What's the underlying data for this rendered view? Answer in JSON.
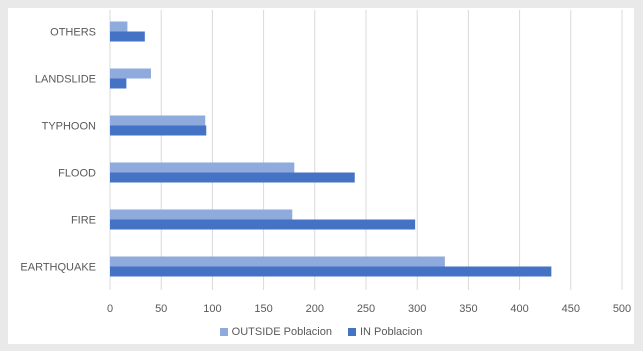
{
  "chart_data": {
    "type": "bar",
    "orientation": "horizontal",
    "categories": [
      "EARTHQUAKE",
      "FIRE",
      "FLOOD",
      "TYPHOON",
      "LANDSLIDE",
      "OTHERS"
    ],
    "series": [
      {
        "name": "OUTSIDE Poblacion",
        "color": "#8faadc",
        "values": [
          327,
          178,
          180,
          93,
          40,
          17
        ]
      },
      {
        "name": "IN Poblacion",
        "color": "#4472c4",
        "values": [
          431,
          298,
          239,
          94,
          16,
          34
        ]
      }
    ],
    "x_ticks": [
      0,
      50,
      100,
      150,
      200,
      250,
      300,
      350,
      400,
      450,
      500
    ],
    "xlim": [
      0,
      500
    ],
    "grid": "vertical",
    "legend_position": "bottom"
  }
}
